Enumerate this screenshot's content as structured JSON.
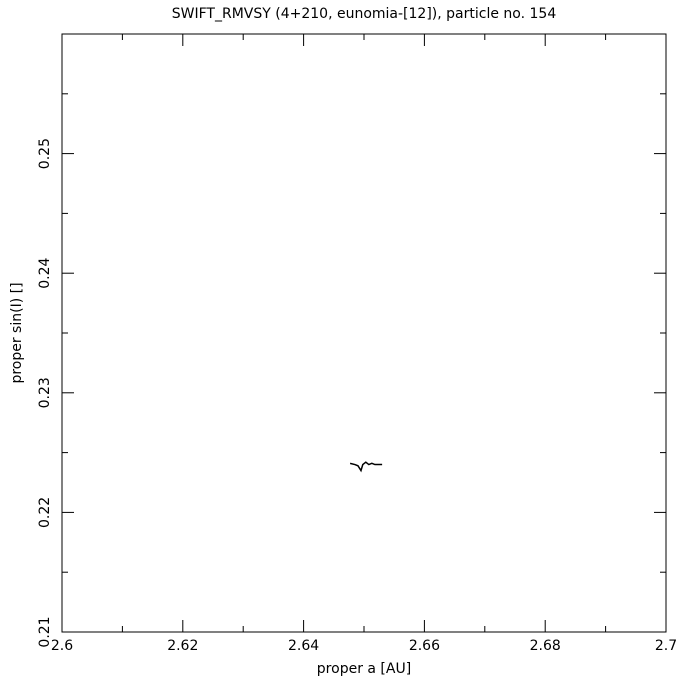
{
  "chart_data": {
    "type": "line",
    "title": "SWIFT_RMVSY (4+210, eunomia-[12]), particle no. 154",
    "x_label": "proper a [AU]",
    "y_label": "proper sin(I) []",
    "x": [
      2.6477,
      2.6485,
      2.649,
      2.6495,
      2.6498,
      2.6503,
      2.6508,
      2.6513,
      2.6518,
      2.6523,
      2.653
    ],
    "values": [
      0.2241,
      0.224,
      0.2239,
      0.2235,
      0.224,
      0.2242,
      0.224,
      0.2241,
      0.224,
      0.224,
      0.224
    ],
    "color": "#000000",
    "xlim": [
      2.6,
      2.7
    ],
    "ylim": [
      0.21,
      0.26
    ],
    "xticks": [
      2.6,
      2.62,
      2.64,
      2.66,
      2.68,
      2.7
    ],
    "yticks": [
      0.21,
      0.22,
      0.23,
      0.24,
      0.25
    ],
    "x_minor_ticks": [
      2.61,
      2.63,
      2.65,
      2.67,
      2.69
    ],
    "y_minor_ticks": [
      0.215,
      0.225,
      0.235,
      0.245,
      0.255
    ],
    "grid": false
  }
}
